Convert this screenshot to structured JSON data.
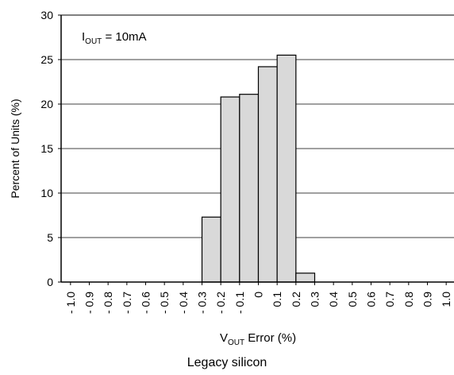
{
  "chart_data": {
    "type": "bar",
    "ylabel": "Percent of Units (%)",
    "xlabel_main": "V",
    "xlabel_sub": "OUT",
    "xlabel_tail": " Error (%)",
    "annotation_main": "I",
    "annotation_sub": "OUT",
    "annotation_tail": " = 10mA",
    "caption": "Legacy silicon",
    "ylim": [
      0,
      30
    ],
    "yticks": [
      "0",
      "5",
      "10",
      "15",
      "20",
      "25",
      "30"
    ],
    "xticks": [
      "- 1.0",
      "- 0.9",
      "- 0.8",
      "- 0.7",
      "- 0.6",
      "- 0.5",
      "- 0.4",
      "- 0.3",
      "- 0.2",
      "- 0.1",
      "0",
      "0.1",
      "0.2",
      "0.3",
      "0.4",
      "0.5",
      "0.6",
      "0.7",
      "0.8",
      "0.9",
      "1.0"
    ],
    "xlim": [
      -1.05,
      1.05
    ],
    "bars": [
      {
        "x": -0.25,
        "value": 7.3
      },
      {
        "x": -0.15,
        "value": 20.8
      },
      {
        "x": -0.05,
        "value": 21.1
      },
      {
        "x": 0.05,
        "value": 24.2
      },
      {
        "x": 0.15,
        "value": 25.5
      },
      {
        "x": 0.25,
        "value": 1.0
      }
    ],
    "bar_width": 0.1,
    "grid": "horizontal",
    "bar_color": "#d9d9d9"
  }
}
